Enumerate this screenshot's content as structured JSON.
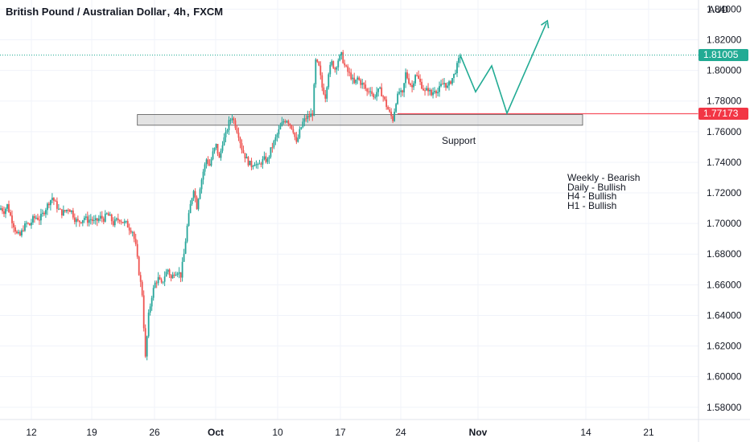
{
  "header": {
    "symbol": "British Pound / Australian Dollar",
    "timeframe": "4h",
    "exchange": "FXCM"
  },
  "axis": {
    "currency": "AUD"
  },
  "annotations": {
    "support_label": "Support",
    "bias_lines": [
      "Weekly - Bearish",
      "Daily - Bullish",
      "H4 - Bullish",
      "H1 - Bullish"
    ]
  },
  "price_tags": {
    "current": "1.81005",
    "support": "1.77173"
  },
  "colors": {
    "bull": "#26a69a",
    "bear": "#ef5350",
    "projection": "#22ab94",
    "support_line": "#f7525f",
    "current_tag": "#22ab94",
    "support_tag": "#f23645"
  },
  "chart_data": {
    "type": "candlestick",
    "title": "British Pound / Australian Dollar, 4h, FXCM",
    "ylim": [
      1.572,
      1.846
    ],
    "y_ticks": [
      "1.58000",
      "1.60000",
      "1.62000",
      "1.64000",
      "1.66000",
      "1.68000",
      "1.70000",
      "1.72000",
      "1.74000",
      "1.76000",
      "1.78000",
      "1.80000",
      "1.82000",
      "1.84000"
    ],
    "x_ticks": [
      {
        "label": "12",
        "bold": false
      },
      {
        "label": "19",
        "bold": false
      },
      {
        "label": "26",
        "bold": false
      },
      {
        "label": "Oct",
        "bold": true
      },
      {
        "label": "10",
        "bold": false
      },
      {
        "label": "17",
        "bold": false
      },
      {
        "label": "24",
        "bold": false
      },
      {
        "label": "Nov",
        "bold": true
      },
      {
        "label": "14",
        "bold": false
      },
      {
        "label": "21",
        "bold": false
      }
    ],
    "current_price": 1.81005,
    "support_price": 1.77173,
    "support_zone": [
      1.7642,
      1.7712
    ],
    "price_path": [
      1.71,
      1.708,
      1.712,
      1.705,
      1.699,
      1.693,
      1.692,
      1.697,
      1.7,
      1.699,
      1.703,
      1.704,
      1.703,
      1.706,
      1.71,
      1.714,
      1.717,
      1.713,
      1.709,
      1.707,
      1.708,
      1.71,
      1.708,
      1.703,
      1.701,
      1.702,
      1.704,
      1.702,
      1.703,
      1.701,
      1.702,
      1.704,
      1.703,
      1.706,
      1.704,
      1.7,
      1.702,
      1.703,
      1.701,
      1.7,
      1.697,
      1.695,
      1.685,
      1.668,
      1.654,
      1.612,
      1.64,
      1.653,
      1.661,
      1.664,
      1.66,
      1.666,
      1.67,
      1.664,
      1.668,
      1.669,
      1.666,
      1.68,
      1.698,
      1.712,
      1.723,
      1.711,
      1.724,
      1.734,
      1.742,
      1.738,
      1.746,
      1.751,
      1.742,
      1.753,
      1.758,
      1.766,
      1.77,
      1.764,
      1.758,
      1.749,
      1.744,
      1.74,
      1.738,
      1.74,
      1.737,
      1.74,
      1.742,
      1.741,
      1.748,
      1.753,
      1.758,
      1.763,
      1.767,
      1.768,
      1.765,
      1.761,
      1.752,
      1.76,
      1.766,
      1.769,
      1.77,
      1.772,
      1.806,
      1.802,
      1.789,
      1.783,
      1.799,
      1.805,
      1.801,
      1.807,
      1.81,
      1.803,
      1.799,
      1.796,
      1.791,
      1.795,
      1.792,
      1.79,
      1.786,
      1.788,
      1.782,
      1.786,
      1.787,
      1.783,
      1.777,
      1.772,
      1.768,
      1.78,
      1.786,
      1.784,
      1.798,
      1.793,
      1.789,
      1.798,
      1.794,
      1.79,
      1.786,
      1.788,
      1.784,
      1.788,
      1.786,
      1.79,
      1.792,
      1.789,
      1.793,
      1.797,
      1.803,
      1.81
    ],
    "projection": [
      1.81,
      1.786,
      1.803,
      1.772,
      1.831
    ],
    "zone_start_index": 85,
    "zone_end_index": 245
  }
}
